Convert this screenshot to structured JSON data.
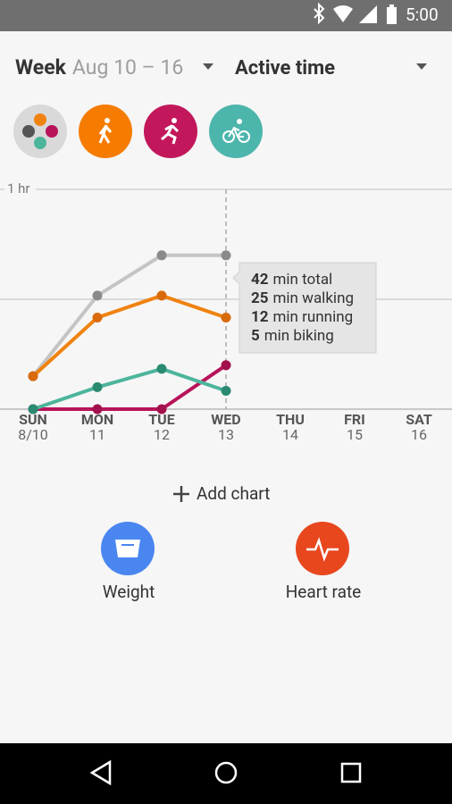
{
  "status_bar": {
    "time": "5:00"
  },
  "header": {
    "period": "Week",
    "range": "Aug 10 – 16",
    "metric": "Active time"
  },
  "chart_data": {
    "type": "line",
    "categories": [
      "SUN",
      "MON",
      "TUE",
      "WED",
      "THU",
      "FRI",
      "SAT"
    ],
    "dates": [
      "8/10",
      "11",
      "12",
      "13",
      "14",
      "15",
      "16"
    ],
    "ylim": [
      0,
      60
    ],
    "yticks": [
      {
        "value": 30,
        "label": null
      },
      {
        "value": 60,
        "label": "1 hr"
      }
    ],
    "grid": true,
    "series": [
      {
        "name": "total",
        "color": "#c4c4c4",
        "dot_color": "#8a8a8a",
        "values": [
          9,
          31,
          42,
          42,
          null,
          null,
          null
        ]
      },
      {
        "name": "walking",
        "color": "#f0820f",
        "dot_color": "#d86a0c",
        "values": [
          9,
          25,
          31,
          25,
          null,
          null,
          null
        ]
      },
      {
        "name": "running",
        "color": "#b8145a",
        "dot_color": "#a3104e",
        "values": [
          0,
          0,
          0,
          12,
          null,
          null,
          null
        ]
      },
      {
        "name": "biking",
        "color": "#4cb59c",
        "dot_color": "#2a8a72",
        "values": [
          0,
          6,
          11,
          5,
          null,
          null,
          null
        ]
      }
    ],
    "selected": 3,
    "tooltip": [
      {
        "amount": "42",
        "text": "min total"
      },
      {
        "amount": "25",
        "text": "min walking"
      },
      {
        "amount": "12",
        "text": "min running"
      },
      {
        "amount": "5",
        "text": "min biking"
      }
    ]
  },
  "actions": {
    "add_chart": "Add chart",
    "cards": [
      {
        "label": "Weight"
      },
      {
        "label": "Heart rate"
      }
    ]
  }
}
